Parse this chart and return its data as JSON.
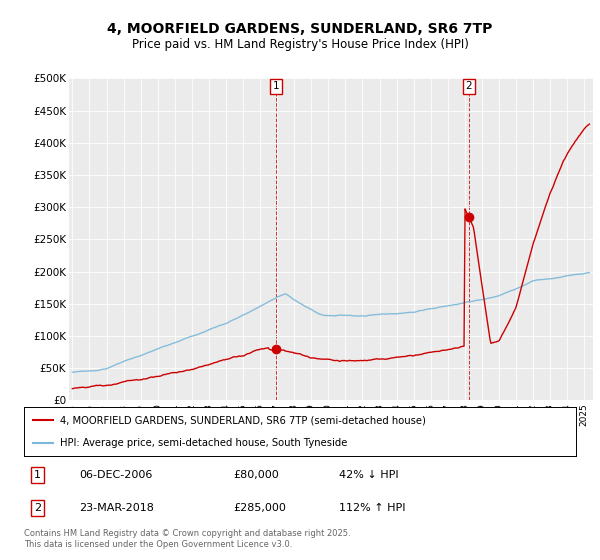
{
  "title": "4, MOORFIELD GARDENS, SUNDERLAND, SR6 7TP",
  "subtitle": "Price paid vs. HM Land Registry's House Price Index (HPI)",
  "ylabel_ticks": [
    "£0",
    "£50K",
    "£100K",
    "£150K",
    "£200K",
    "£250K",
    "£300K",
    "£350K",
    "£400K",
    "£450K",
    "£500K"
  ],
  "ytick_values": [
    0,
    50000,
    100000,
    150000,
    200000,
    250000,
    300000,
    350000,
    400000,
    450000,
    500000
  ],
  "ylim": [
    0,
    500000
  ],
  "xlim_start": 1994.8,
  "xlim_end": 2025.5,
  "hpi_color": "#7ab8d9",
  "price_color": "#cc0000",
  "marker1_x": 2006.92,
  "marker1_y": 80000,
  "marker1_label": "1",
  "marker2_x": 2018.22,
  "marker2_y": 285000,
  "marker2_label": "2",
  "annotation1": [
    "1",
    "06-DEC-2006",
    "£80,000",
    "42% ↓ HPI"
  ],
  "annotation2": [
    "2",
    "23-MAR-2018",
    "£285,000",
    "112% ↑ HPI"
  ],
  "legend_line1": "4, MOORFIELD GARDENS, SUNDERLAND, SR6 7TP (semi-detached house)",
  "legend_line2": "HPI: Average price, semi-detached house, South Tyneside",
  "footer": "Contains HM Land Registry data © Crown copyright and database right 2025.\nThis data is licensed under the Open Government Licence v3.0.",
  "background_color": "#ffffff",
  "plot_bg_color": "#ebebeb"
}
